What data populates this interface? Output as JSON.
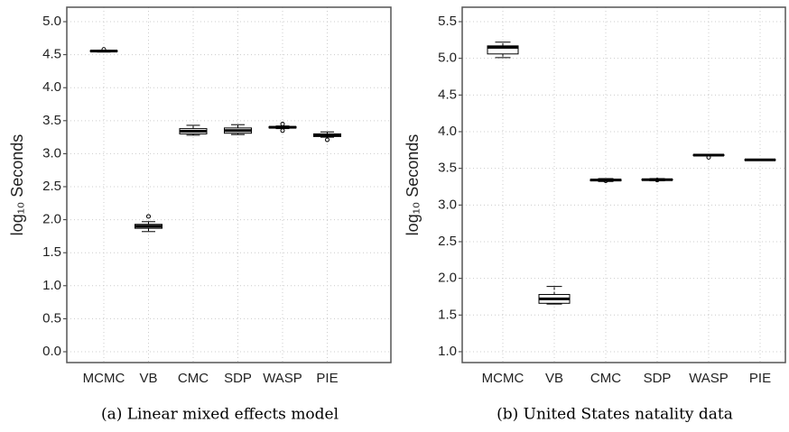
{
  "chart_data": [
    {
      "type": "boxplot",
      "y_label": "log₁₀ Seconds",
      "caption": "(a) Linear mixed effects model",
      "categories": [
        "MCMC",
        "VB",
        "CMC",
        "SDP",
        "WASP",
        "PIE"
      ],
      "boxes": [
        {
          "min": 4.54,
          "q1": 4.55,
          "median": 4.555,
          "q3": 4.56,
          "max": 4.565,
          "outliers": [
            4.58
          ]
        },
        {
          "min": 1.82,
          "q1": 1.87,
          "median": 1.9,
          "q3": 1.93,
          "max": 1.97,
          "outliers": [
            2.05
          ]
        },
        {
          "min": 3.28,
          "q1": 3.3,
          "median": 3.34,
          "q3": 3.38,
          "max": 3.43,
          "outliers": []
        },
        {
          "min": 3.29,
          "q1": 3.31,
          "median": 3.35,
          "q3": 3.39,
          "max": 3.44,
          "outliers": []
        },
        {
          "min": 3.38,
          "q1": 3.39,
          "median": 3.4,
          "q3": 3.41,
          "max": 3.42,
          "outliers": [
            3.35,
            3.45
          ]
        },
        {
          "min": 3.25,
          "q1": 3.26,
          "median": 3.28,
          "q3": 3.3,
          "max": 3.33,
          "outliers": [
            3.21
          ]
        }
      ],
      "ylim": [
        -0.164,
        5.219
      ],
      "yticks": [
        {
          "value": 0,
          "label": "0.0"
        },
        0.5,
        {
          "value": 1,
          "label": "1.0"
        },
        1.5,
        {
          "value": 2,
          "label": "2.0"
        },
        2.5,
        {
          "value": 3,
          "label": "3.0"
        },
        3.5,
        {
          "value": 4,
          "label": "4.0"
        },
        4.5,
        {
          "value": 5,
          "label": "5.0"
        }
      ],
      "grid": true
    },
    {
      "type": "boxplot",
      "y_label": "log₁₀ Seconds",
      "caption": "(b) United States natality data",
      "categories": [
        "MCMC",
        "VB",
        "CMC",
        "SDP",
        "WASP",
        "PIE"
      ],
      "boxes": [
        {
          "min": 5.01,
          "q1": 5.06,
          "median": 5.15,
          "q3": 5.17,
          "max": 5.22,
          "outliers": []
        },
        {
          "min": 1.65,
          "q1": 1.66,
          "median": 1.72,
          "q3": 1.78,
          "max": 1.89,
          "outliers": []
        },
        {
          "min": 3.32,
          "q1": 3.33,
          "median": 3.34,
          "q3": 3.35,
          "max": 3.36,
          "outliers": [
            3.33
          ]
        },
        {
          "min": 3.33,
          "q1": 3.34,
          "median": 3.345,
          "q3": 3.35,
          "max": 3.36,
          "outliers": [
            3.34
          ]
        },
        {
          "min": 3.67,
          "q1": 3.675,
          "median": 3.68,
          "q3": 3.685,
          "max": 3.69,
          "outliers": [
            3.65
          ]
        },
        {
          "min": 3.61,
          "q1": 3.612,
          "median": 3.615,
          "q3": 3.618,
          "max": 3.62,
          "outliers": []
        }
      ],
      "ylim": [
        0.852,
        5.697
      ],
      "yticks": [
        {
          "value": 1,
          "label": "1.0"
        },
        1.5,
        {
          "value": 2,
          "label": "2.0"
        },
        2.5,
        {
          "value": 3,
          "label": "3.0"
        },
        3.5,
        {
          "value": 4,
          "label": "4.0"
        },
        4.5,
        {
          "value": 5,
          "label": "5.0"
        },
        5.5
      ],
      "grid": true
    }
  ]
}
